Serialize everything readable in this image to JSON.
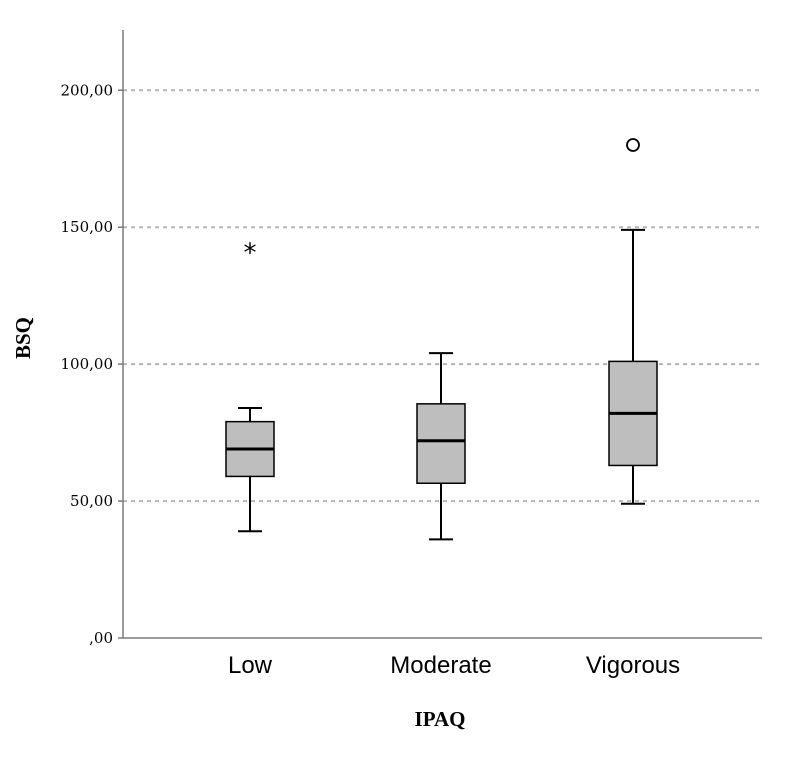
{
  "chart_data": {
    "type": "boxplot",
    "title": "",
    "xlabel": "IPAQ",
    "ylabel": "BSQ",
    "ylim": [
      0,
      222
    ],
    "yticks": [
      0,
      50,
      100,
      150,
      200
    ],
    "ytick_labels": [
      ",00",
      "50,00",
      "100,00",
      "150,00",
      "200,00"
    ],
    "grid": "horizontal-dashed",
    "categories": [
      "Low",
      "Moderate",
      "Vigorous"
    ],
    "boxes": [
      {
        "category": "Low",
        "whisker_low": 39,
        "q1": 59,
        "median": 69,
        "q3": 79,
        "whisker_high": 84,
        "outliers": [
          {
            "value": 143,
            "marker": "*"
          }
        ]
      },
      {
        "category": "Moderate",
        "whisker_low": 36,
        "q1": 56.5,
        "median": 72,
        "q3": 85.5,
        "whisker_high": 104,
        "outliers": []
      },
      {
        "category": "Vigorous",
        "whisker_low": 49,
        "q1": 63,
        "median": 82,
        "q3": 101,
        "whisker_high": 149,
        "outliers": [
          {
            "value": 180,
            "marker": "o"
          }
        ]
      }
    ],
    "colors": {
      "box_fill": "#bebebe",
      "stroke": "#000000",
      "grid": "#b4b4b4",
      "axis": "#7a7a7a"
    }
  }
}
